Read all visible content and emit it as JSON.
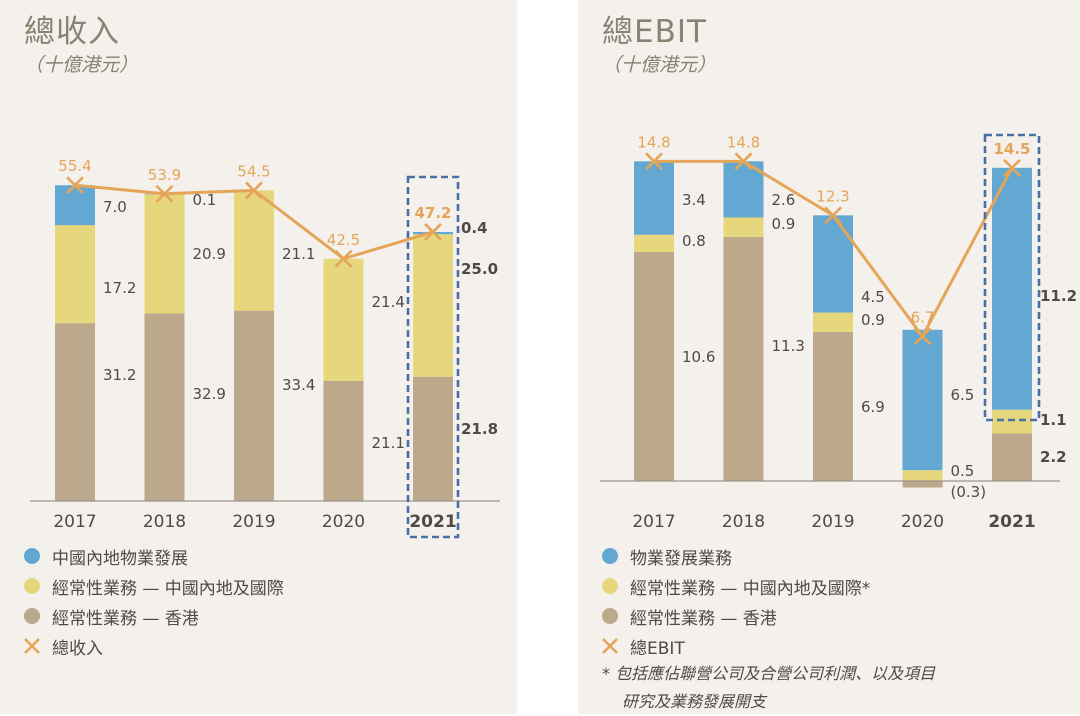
{
  "colors": {
    "blue": "#62a8d2",
    "yellow": "#e6d67c",
    "tan": "#bca88b",
    "line": "#e5a559",
    "highlight": "#4a6fa5",
    "label": "#4f4a44"
  },
  "revenue": {
    "title": "總收入",
    "subtitle": "（十億港元）",
    "legend": [
      {
        "label": "中國內地物業發展",
        "color_key": "blue"
      },
      {
        "label": "經常性業務 — 中國內地及國際",
        "color_key": "yellow"
      },
      {
        "label": "經常性業務 — 香港",
        "color_key": "tan"
      },
      {
        "label": "總收入",
        "marker": "cross"
      }
    ]
  },
  "ebit": {
    "title": "總EBIT",
    "subtitle": "（十億港元）",
    "legend": [
      {
        "label": "物業發展業務",
        "color_key": "blue"
      },
      {
        "label": "經常性業務 — 中國內地及國際*",
        "color_key": "yellow"
      },
      {
        "label": "經常性業務 — 香港",
        "color_key": "tan"
      },
      {
        "label": "總EBIT",
        "marker": "cross"
      }
    ],
    "footnote_line1": "* 包括應佔聯營公司及合營公司利潤、以及項目",
    "footnote_line2": "研究及業務發展開支"
  },
  "chart_data": [
    {
      "type": "bar",
      "stacked": true,
      "title": "總收入",
      "ylabel": "（十億港元）",
      "categories": [
        "2017",
        "2018",
        "2019",
        "2020",
        "2021"
      ],
      "highlight_category": "2021",
      "ylim": [
        0,
        60
      ],
      "series": [
        {
          "name": "經常性業務 — 香港",
          "color_key": "tan",
          "values": [
            31.2,
            32.9,
            33.4,
            21.1,
            21.8
          ],
          "labels": [
            "31.2",
            "32.9",
            "33.4",
            "21.1",
            "21.8"
          ]
        },
        {
          "name": "經常性業務 — 中國內地及國際",
          "color_key": "yellow",
          "values": [
            17.2,
            20.9,
            21.1,
            21.4,
            25.0
          ],
          "labels": [
            "17.2",
            "20.9",
            "21.1",
            "21.4",
            "25.0"
          ]
        },
        {
          "name": "中國內地物業發展",
          "color_key": "blue",
          "values": [
            7.0,
            0.1,
            0.0,
            0.0,
            0.4
          ],
          "labels": [
            "7.0",
            "0.1",
            "",
            "",
            "0.4"
          ]
        }
      ],
      "total": {
        "name": "總收入",
        "values": [
          55.4,
          53.9,
          54.5,
          42.5,
          47.2
        ],
        "labels": [
          "55.4",
          "53.9",
          "54.5",
          "42.5",
          "47.2"
        ]
      }
    },
    {
      "type": "bar",
      "stacked": true,
      "title": "總EBIT",
      "ylabel": "（十億港元）",
      "categories": [
        "2017",
        "2018",
        "2019",
        "2020",
        "2021"
      ],
      "highlight_category": "2021",
      "ylim": [
        -0.5,
        16
      ],
      "series": [
        {
          "name": "經常性業務 — 香港",
          "color_key": "tan",
          "values": [
            10.6,
            11.3,
            6.9,
            -0.3,
            2.2
          ],
          "labels": [
            "10.6",
            "11.3",
            "6.9",
            "(0.3)",
            "2.2"
          ]
        },
        {
          "name": "經常性業務 — 中國內地及國際*",
          "color_key": "yellow",
          "values": [
            0.8,
            0.9,
            0.9,
            0.5,
            1.1
          ],
          "labels": [
            "0.8",
            "0.9",
            "0.9",
            "0.5",
            "1.1"
          ]
        },
        {
          "name": "物業發展業務",
          "color_key": "blue",
          "values": [
            3.4,
            2.6,
            4.5,
            6.5,
            11.2
          ],
          "labels": [
            "3.4",
            "2.6",
            "4.5",
            "6.5",
            "11.2"
          ]
        }
      ],
      "total": {
        "name": "總EBIT",
        "values": [
          14.8,
          14.8,
          12.3,
          6.7,
          14.5
        ],
        "labels": [
          "14.8",
          "14.8",
          "12.3",
          "6.7",
          "14.5"
        ]
      }
    }
  ]
}
